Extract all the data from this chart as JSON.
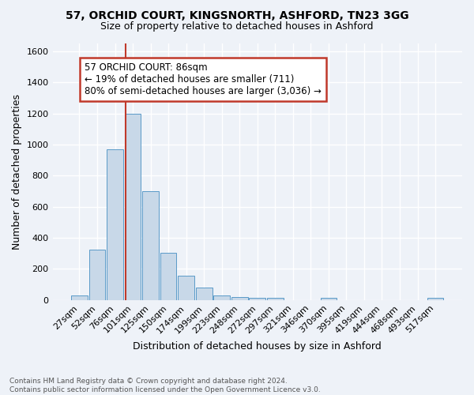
{
  "title1": "57, ORCHID COURT, KINGSNORTH, ASHFORD, TN23 3GG",
  "title2": "Size of property relative to detached houses in Ashford",
  "xlabel": "Distribution of detached houses by size in Ashford",
  "ylabel": "Number of detached properties",
  "bin_labels": [
    "27sqm",
    "52sqm",
    "76sqm",
    "101sqm",
    "125sqm",
    "150sqm",
    "174sqm",
    "199sqm",
    "223sqm",
    "248sqm",
    "272sqm",
    "297sqm",
    "321sqm",
    "346sqm",
    "370sqm",
    "395sqm",
    "419sqm",
    "444sqm",
    "468sqm",
    "493sqm",
    "517sqm"
  ],
  "bar_values": [
    28,
    325,
    968,
    1200,
    700,
    305,
    155,
    78,
    28,
    18,
    15,
    15,
    0,
    0,
    14,
    0,
    0,
    0,
    0,
    0,
    14
  ],
  "bar_color": "#c8d8e8",
  "bar_edge_color": "#5a9ac8",
  "vline_x_index": 2.58,
  "vline_color": "#c0392b",
  "annotation_text": "57 ORCHID COURT: 86sqm\n← 19% of detached houses are smaller (711)\n80% of semi-detached houses are larger (3,036) →",
  "annotation_box_facecolor": "#ffffff",
  "annotation_box_edgecolor": "#c0392b",
  "ylim": [
    0,
    1650
  ],
  "yticks": [
    0,
    200,
    400,
    600,
    800,
    1000,
    1200,
    1400,
    1600
  ],
  "footer_text": "Contains HM Land Registry data © Crown copyright and database right 2024.\nContains public sector information licensed under the Open Government Licence v3.0.",
  "bg_color": "#eef2f8",
  "grid_color": "#ffffff"
}
